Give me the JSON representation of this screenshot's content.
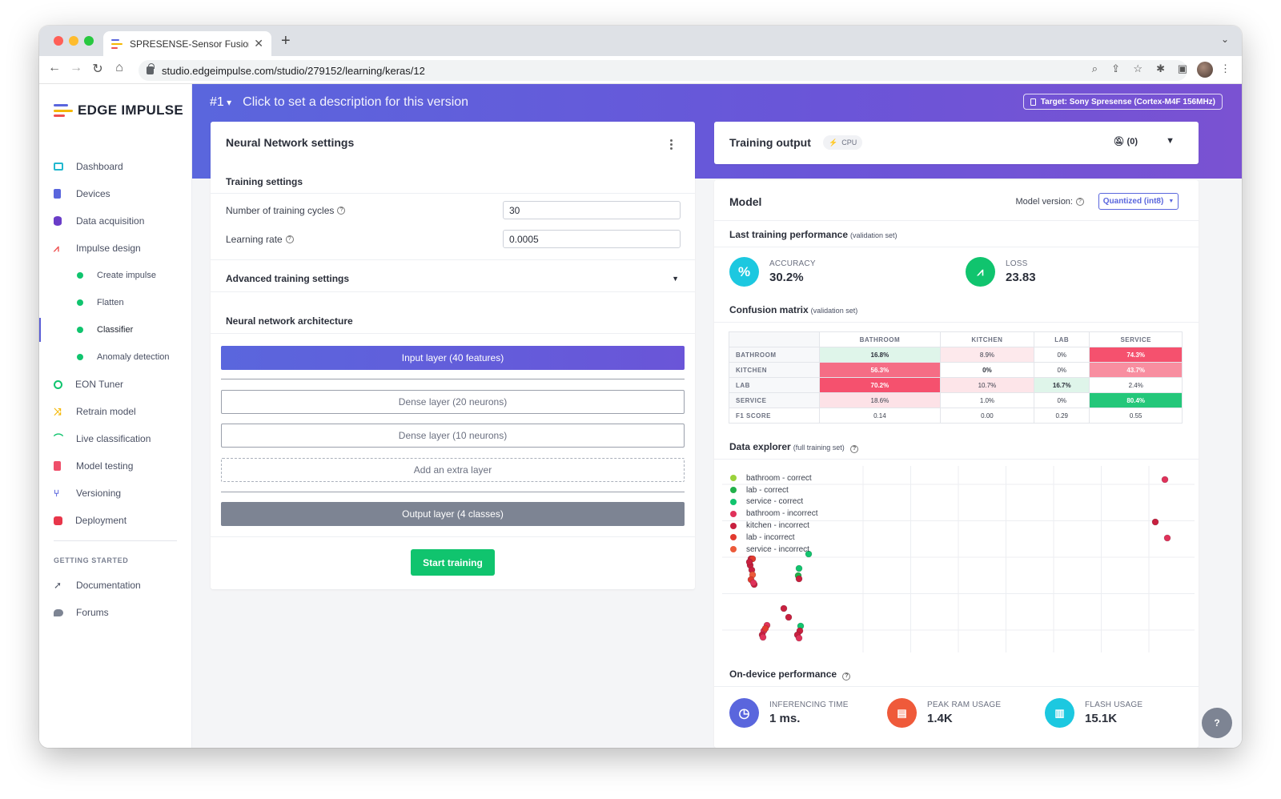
{
  "browser": {
    "tab_title": "SPRESENSE-Sensor Fusion-Ra",
    "url": "studio.edgeimpulse.com/studio/279152/learning/keras/12"
  },
  "sidebar": {
    "brand": "EDGE IMPULSE",
    "items": [
      {
        "label": "Dashboard",
        "icon": "monitor-icon",
        "color": "#22b8cf"
      },
      {
        "label": "Devices",
        "icon": "chip-icon",
        "color": "#5a66dd"
      },
      {
        "label": "Data acquisition",
        "icon": "database-icon",
        "color": "#6a3dc8"
      },
      {
        "label": "Impulse design",
        "icon": "pulse-icon",
        "color": "#ef4f4f"
      }
    ],
    "sub_items": [
      {
        "label": "Create impulse"
      },
      {
        "label": "Flatten"
      },
      {
        "label": "Classifier"
      },
      {
        "label": "Anomaly detection"
      }
    ],
    "items2": [
      {
        "label": "EON Tuner",
        "icon": "tuner-icon",
        "color": "#10c46e"
      },
      {
        "label": "Retrain model",
        "icon": "shuffle-icon",
        "color": "#f5b700"
      },
      {
        "label": "Live classification",
        "icon": "live-icon",
        "color": "#10c46e"
      },
      {
        "label": "Model testing",
        "icon": "clipboard-icon",
        "color": "#ef4f6a"
      },
      {
        "label": "Versioning",
        "icon": "branch-icon",
        "color": "#5a66dd"
      },
      {
        "label": "Deployment",
        "icon": "box-icon",
        "color": "#e8364a"
      }
    ],
    "section": "GETTING STARTED",
    "getting_started": [
      {
        "label": "Documentation",
        "icon": "rocket-icon",
        "color": "#555b6b"
      },
      {
        "label": "Forums",
        "icon": "chat-icon",
        "color": "#7d8493"
      }
    ]
  },
  "header": {
    "version": "#1",
    "description": "Click to set a description for this version",
    "target": "Target: Sony Spresense (Cortex-M4F 156MHz)"
  },
  "nn": {
    "title": "Neural Network settings",
    "training_settings": "Training settings",
    "cycles_label": "Number of training cycles",
    "cycles_value": "30",
    "lr_label": "Learning rate",
    "lr_value": "0.0005",
    "advanced": "Advanced training settings",
    "architecture": "Neural network architecture",
    "layers": {
      "input": "Input layer (40 features)",
      "dense1": "Dense layer (20 neurons)",
      "dense2": "Dense layer (10 neurons)",
      "extra": "Add an extra layer",
      "output": "Output layer (4 classes)"
    },
    "start": "Start training"
  },
  "training_output": {
    "title": "Training output",
    "badge": "CPU",
    "notifications": "(0)"
  },
  "model": {
    "title": "Model",
    "version_label": "Model version:",
    "version_value": "Quantized (int8)",
    "last_perf": "Last training performance",
    "last_perf_note": "(validation set)",
    "accuracy_label": "ACCURACY",
    "accuracy_value": "30.2%",
    "loss_label": "LOSS",
    "loss_value": "23.83",
    "confusion_title": "Confusion matrix",
    "confusion_note": "(validation set)",
    "confusion": {
      "columns": [
        "BATHROOM",
        "KITCHEN",
        "LAB",
        "SERVICE"
      ],
      "rows": [
        {
          "label": "BATHROOM",
          "cells": [
            "16.8%",
            "8.9%",
            "0%",
            "74.3%"
          ],
          "bg": [
            "#dff5ea",
            "#fde9ec",
            "#ffffff",
            "#f5516e"
          ],
          "fg": [
            "#2b2f3a",
            "#3a3f4c",
            "#3a3f4c",
            "#ffffff"
          ]
        },
        {
          "label": "KITCHEN",
          "cells": [
            "56.3%",
            "0%",
            "0%",
            "43.7%"
          ],
          "bg": [
            "#f56d85",
            "#ffffff",
            "#ffffff",
            "#f88ea0"
          ],
          "fg": [
            "#ffffff",
            "#2b2f3a",
            "#3a3f4c",
            "#ffffff"
          ]
        },
        {
          "label": "LAB",
          "cells": [
            "70.2%",
            "10.7%",
            "16.7%",
            "2.4%"
          ],
          "bg": [
            "#f5516e",
            "#fde5e9",
            "#dff5ea",
            "#ffffff"
          ],
          "fg": [
            "#ffffff",
            "#3a3f4c",
            "#2b2f3a",
            "#3a3f4c"
          ]
        },
        {
          "label": "SERVICE",
          "cells": [
            "18.6%",
            "1.0%",
            "0%",
            "80.4%"
          ],
          "bg": [
            "#fde2e7",
            "#ffffff",
            "#ffffff",
            "#24c77a"
          ],
          "fg": [
            "#3a3f4c",
            "#3a3f4c",
            "#3a3f4c",
            "#ffffff"
          ]
        }
      ],
      "f1_label": "F1 SCORE",
      "f1": [
        "0.14",
        "0.00",
        "0.29",
        "0.55"
      ]
    },
    "explorer_title": "Data explorer",
    "explorer_note": "(full training set)",
    "legend": [
      {
        "label": "bathroom - correct",
        "color": "#9ad23b"
      },
      {
        "label": "lab - correct",
        "color": "#22b04a"
      },
      {
        "label": "service - correct",
        "color": "#12c46e"
      },
      {
        "label": "bathroom - incorrect",
        "color": "#e0325a"
      },
      {
        "label": "kitchen - incorrect",
        "color": "#c8203f"
      },
      {
        "label": "lab - incorrect",
        "color": "#e23a2f"
      },
      {
        "label": "service - incorrect",
        "color": "#ec5a3a"
      }
    ],
    "on_device": "On-device performance",
    "perf": [
      {
        "label": "INFERENCING TIME",
        "value": "1 ms.",
        "color": "#5a66dd",
        "icon": "clock-icon"
      },
      {
        "label": "PEAK RAM USAGE",
        "value": "1.4K",
        "color": "#ef5a3a",
        "icon": "ram-icon"
      },
      {
        "label": "FLASH USAGE",
        "value": "15.1K",
        "color": "#1cc8e0",
        "icon": "flash-icon"
      }
    ]
  },
  "help_fab": "?"
}
